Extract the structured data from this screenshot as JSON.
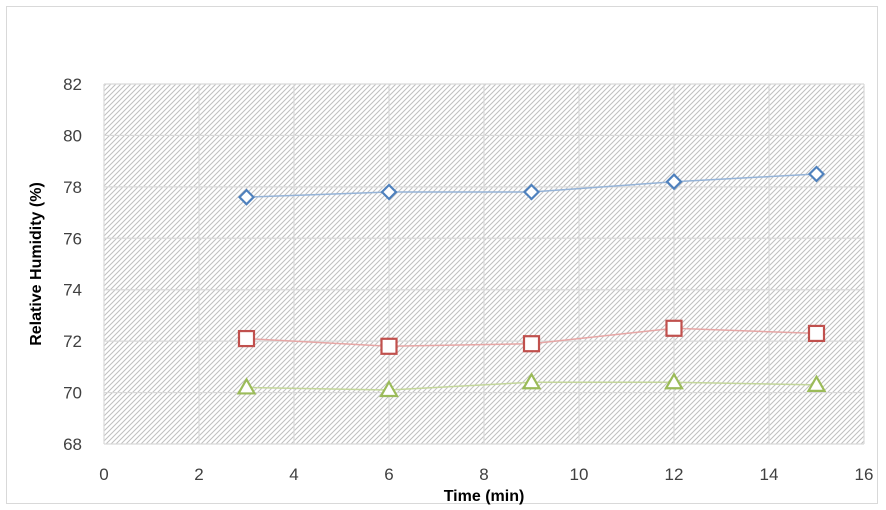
{
  "chart_data": {
    "type": "scatter",
    "title": "",
    "xlabel": "Time (min)",
    "ylabel": "Relative Humidity (%)",
    "xlim": [
      0,
      16
    ],
    "ylim": [
      68,
      82
    ],
    "xticks": [
      0,
      2,
      4,
      6,
      8,
      10,
      12,
      14,
      16
    ],
    "yticks": [
      68,
      70,
      72,
      74,
      76,
      78,
      80,
      82
    ],
    "grid": true,
    "legend": "none",
    "x": [
      3,
      6,
      9,
      12,
      15
    ],
    "series": [
      {
        "marker": "diamond",
        "color": "#4f81bd",
        "line_color": "#95b3d7",
        "values": [
          77.6,
          77.8,
          77.8,
          78.2,
          78.5
        ]
      },
      {
        "marker": "square",
        "color": "#c0504d",
        "line_color": "#e6a6a5",
        "values": [
          72.1,
          71.8,
          71.9,
          72.5,
          72.3
        ]
      },
      {
        "marker": "triangle",
        "color": "#9bbb59",
        "line_color": "#c3d69b",
        "values": [
          70.2,
          70.1,
          70.4,
          70.4,
          70.3
        ]
      }
    ]
  }
}
